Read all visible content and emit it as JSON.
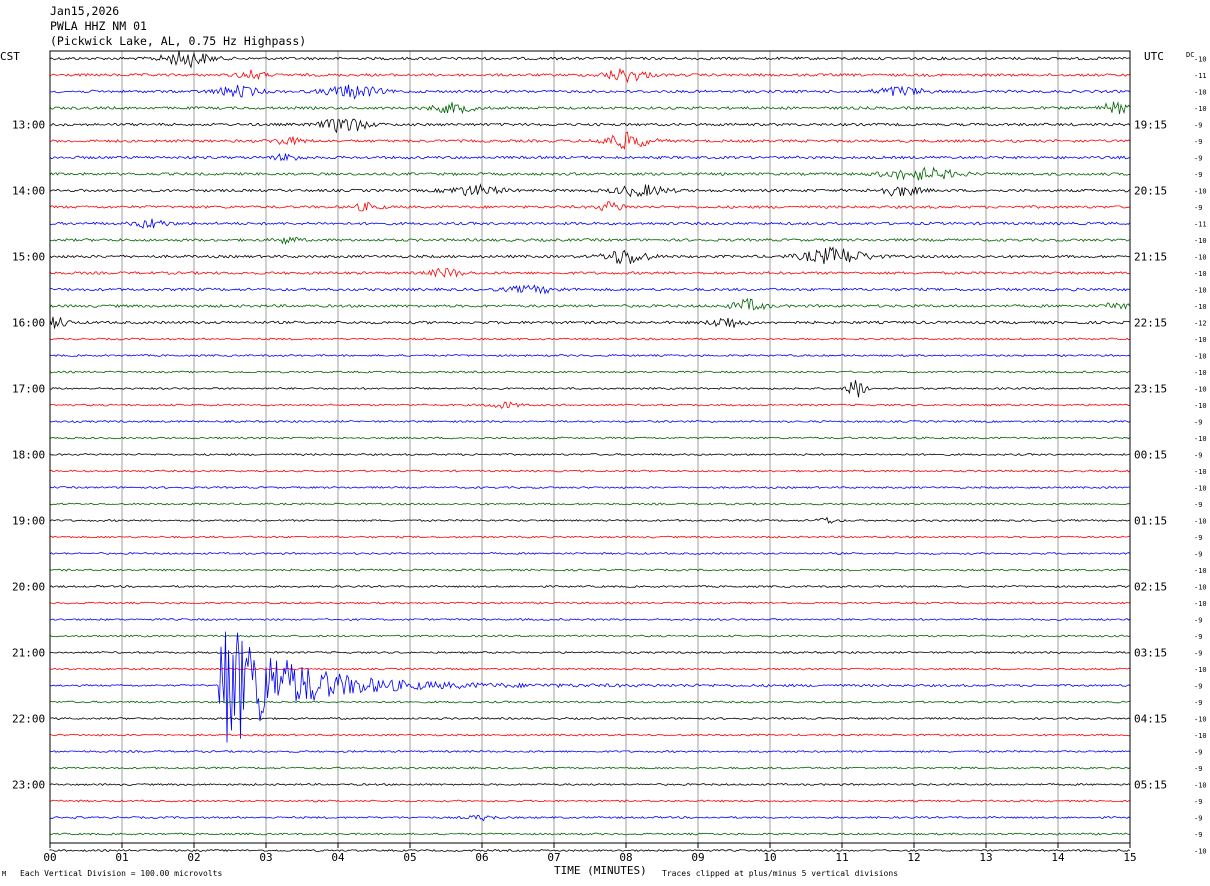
{
  "header": {
    "date": "Jan15,2026",
    "station": "PWLA HHZ NM 01",
    "location": "(Pickwick Lake, AL, 0.75 Hz Highpass)"
  },
  "labels": {
    "left_tz": "CST",
    "right_tz": "UTC",
    "dc": "DC"
  },
  "footer": {
    "scale_note": "Each Vertical Division =  100.00 microvolts",
    "clip_note": "Traces clipped at plus/minus 5 vertical divisions"
  },
  "chart_data": {
    "type": "line",
    "title": "PWLA HHZ NM 01",
    "xlabel": "TIME (MINUTES)",
    "xlim": [
      0,
      15
    ],
    "x_ticks": [
      "00",
      "01",
      "02",
      "03",
      "04",
      "05",
      "06",
      "07",
      "08",
      "09",
      "10",
      "11",
      "12",
      "13",
      "14",
      "15"
    ],
    "trace_colors": [
      "#000000",
      "#ff0000",
      "#0000ff",
      "#006400"
    ],
    "left_hour_labels": [
      "13:00",
      "14:00",
      "15:00",
      "16:00",
      "17:00",
      "18:00",
      "19:00",
      "20:00",
      "21:00",
      "22:00",
      "23:00"
    ],
    "right_hour_labels": [
      "19:15",
      "20:15",
      "21:15",
      "22:15",
      "23:15",
      "00:15",
      "01:15",
      "02:15",
      "03:15",
      "04:15",
      "05:15"
    ],
    "hour_label_trace_index": [
      4,
      8,
      12,
      16,
      20,
      24,
      28,
      32,
      36,
      40,
      44
    ],
    "dc_offsets": [
      -10,
      -11,
      -10,
      -10,
      -9,
      -9,
      -9,
      -9,
      -10,
      -9,
      -11,
      -10,
      -10,
      -10,
      -10,
      -10,
      -12,
      -10,
      -10,
      -10,
      -10,
      -10,
      -9,
      -10,
      -9,
      -10,
      -10,
      -9,
      -10,
      -9,
      -9,
      -10,
      -10,
      -10,
      -9,
      -9,
      -9,
      -10,
      -9,
      -9,
      -10,
      -10,
      -9,
      -9,
      -10,
      -9,
      -9,
      -9,
      -10
    ],
    "trace_count": 49,
    "events": [
      {
        "trace": 0,
        "minute": 1.9,
        "amp": 2.2,
        "dur": 0.9
      },
      {
        "trace": 1,
        "minute": 8.0,
        "amp": 1.8,
        "dur": 0.8
      },
      {
        "trace": 1,
        "minute": 2.8,
        "amp": 1.2,
        "dur": 0.5
      },
      {
        "trace": 2,
        "minute": 2.6,
        "amp": 1.5,
        "dur": 0.8
      },
      {
        "trace": 2,
        "minute": 4.2,
        "amp": 1.8,
        "dur": 1.0
      },
      {
        "trace": 2,
        "minute": 11.8,
        "amp": 1.3,
        "dur": 0.9
      },
      {
        "trace": 3,
        "minute": 5.6,
        "amp": 1.3,
        "dur": 0.8
      },
      {
        "trace": 3,
        "minute": 14.8,
        "amp": 1.6,
        "dur": 0.5
      },
      {
        "trace": 4,
        "minute": 4.1,
        "amp": 2.2,
        "dur": 0.8
      },
      {
        "trace": 5,
        "minute": 8.0,
        "amp": 2.2,
        "dur": 0.9
      },
      {
        "trace": 5,
        "minute": 3.3,
        "amp": 1.0,
        "dur": 0.6
      },
      {
        "trace": 6,
        "minute": 3.3,
        "amp": 1.0,
        "dur": 0.5
      },
      {
        "trace": 7,
        "minute": 12.1,
        "amp": 1.6,
        "dur": 1.4
      },
      {
        "trace": 8,
        "minute": 5.9,
        "amp": 1.4,
        "dur": 1.0
      },
      {
        "trace": 8,
        "minute": 8.2,
        "amp": 1.5,
        "dur": 1.0
      },
      {
        "trace": 8,
        "minute": 11.8,
        "amp": 1.4,
        "dur": 0.8
      },
      {
        "trace": 9,
        "minute": 7.8,
        "amp": 1.3,
        "dur": 0.5
      },
      {
        "trace": 9,
        "minute": 4.4,
        "amp": 1.0,
        "dur": 0.5
      },
      {
        "trace": 10,
        "minute": 1.4,
        "amp": 1.3,
        "dur": 0.6
      },
      {
        "trace": 11,
        "minute": 3.3,
        "amp": 1.0,
        "dur": 0.4
      },
      {
        "trace": 12,
        "minute": 8.0,
        "amp": 2.2,
        "dur": 0.8
      },
      {
        "trace": 12,
        "minute": 10.9,
        "amp": 2.3,
        "dur": 1.2
      },
      {
        "trace": 13,
        "minute": 5.5,
        "amp": 1.2,
        "dur": 0.6
      },
      {
        "trace": 14,
        "minute": 6.7,
        "amp": 0.9,
        "dur": 1.0
      },
      {
        "trace": 15,
        "minute": 9.7,
        "amp": 1.7,
        "dur": 0.6
      },
      {
        "trace": 15,
        "minute": 14.8,
        "amp": 1.0,
        "dur": 0.4
      },
      {
        "trace": 16,
        "minute": 0.1,
        "amp": 1.6,
        "dur": 0.4
      },
      {
        "trace": 16,
        "minute": 9.4,
        "amp": 1.6,
        "dur": 0.6
      },
      {
        "trace": 20,
        "minute": 11.2,
        "amp": 3.2,
        "dur": 0.3
      },
      {
        "trace": 21,
        "minute": 6.3,
        "amp": 0.8,
        "dur": 0.6
      },
      {
        "trace": 28,
        "minute": 10.8,
        "amp": 0.8,
        "dur": 0.4
      },
      {
        "trace": 38,
        "minute": 2.35,
        "amp": 9.0,
        "dur": 4.5,
        "decay": true
      },
      {
        "trace": 46,
        "minute": 6.0,
        "amp": 0.7,
        "dur": 0.5
      }
    ]
  }
}
